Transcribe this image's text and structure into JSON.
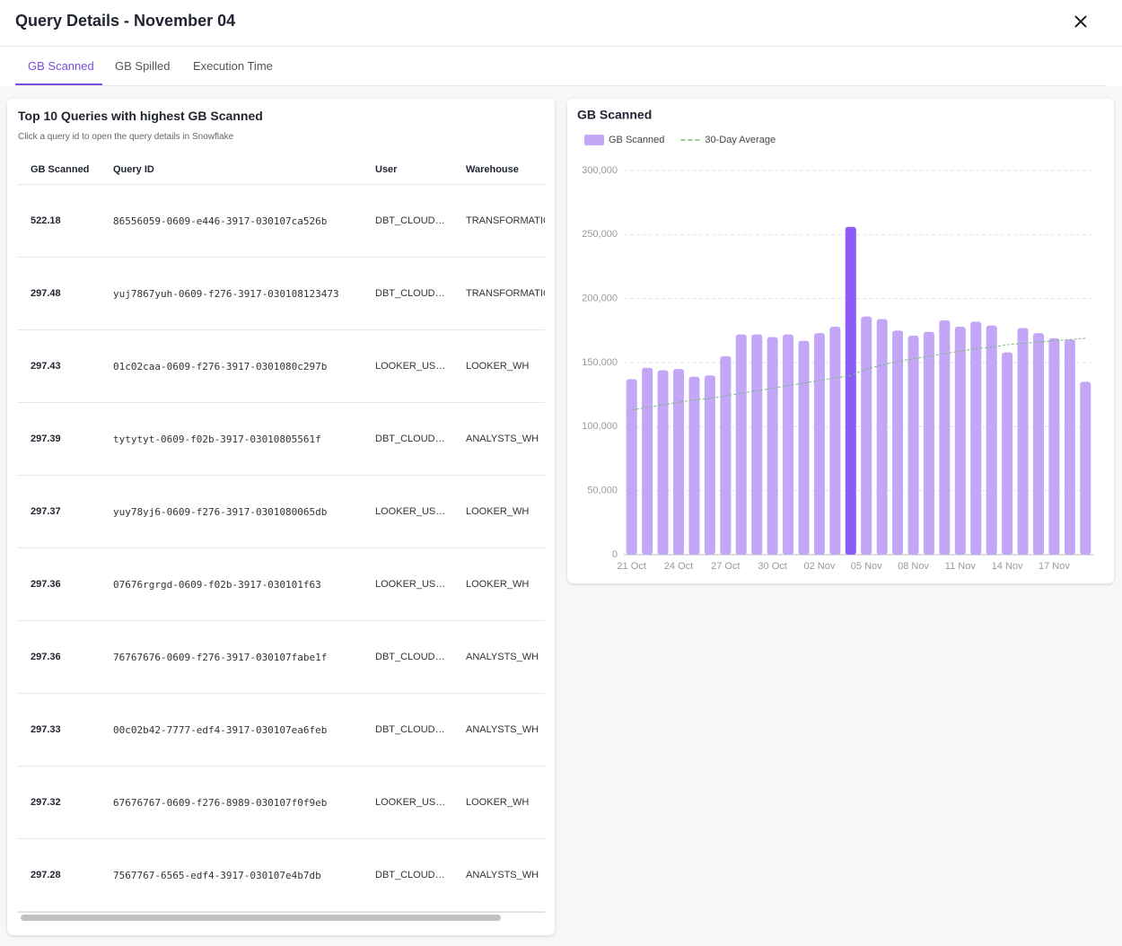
{
  "header": {
    "title": "Query Details - November 04"
  },
  "tabs": [
    "GB Scanned",
    "GB Spilled",
    "Execution Time"
  ],
  "table_card": {
    "title": "Top 10 Queries with highest GB Scanned",
    "subtitle": "Click a query id to open the query details in Snowflake",
    "columns": [
      "GB Scanned",
      "Query ID",
      "User",
      "Warehouse"
    ],
    "rows": [
      [
        "522.18",
        "86556059-0609-e446-3917-030107ca526b",
        "DBT_CLOUD…",
        "TRANSFORMATION_WH"
      ],
      [
        "297.48",
        "yuj7867yuh-0609-f276-3917-030108123473",
        "DBT_CLOUD…",
        "TRANSFORMATION_WH"
      ],
      [
        "297.43",
        "01c02caa-0609-f276-3917-0301080c297b",
        "LOOKER_US…",
        "LOOKER_WH"
      ],
      [
        "297.39",
        "tytytyt-0609-f02b-3917-03010805561f",
        "DBT_CLOUD…",
        "ANALYSTS_WH"
      ],
      [
        "297.37",
        "yuy78yj6-0609-f276-3917-0301080065db",
        "LOOKER_US…",
        "LOOKER_WH"
      ],
      [
        "297.36",
        "07676rgrgd-0609-f02b-3917-030101f63",
        "LOOKER_US…",
        "LOOKER_WH"
      ],
      [
        "297.36",
        "76767676-0609-f276-3917-030107fabe1f",
        "DBT_CLOUD…",
        "ANALYSTS_WH"
      ],
      [
        "297.33",
        "00c02b42-7777-edf4-3917-030107ea6feb",
        "DBT_CLOUD…",
        "ANALYSTS_WH"
      ],
      [
        "297.32",
        "67676767-0609-f276-8989-030107f0f9eb",
        "LOOKER_US…",
        "LOOKER_WH"
      ],
      [
        "297.28",
        "7567767-6565-edf4-3917-030107e4b7db",
        "DBT_CLOUD…",
        "ANALYSTS_WH"
      ]
    ]
  },
  "chart_data": {
    "type": "bar",
    "title": "GB Scanned",
    "categories": [
      "21 Oct",
      null,
      null,
      "24 Oct",
      null,
      null,
      "27 Oct",
      null,
      null,
      "30 Oct",
      null,
      null,
      "02 Nov",
      null,
      null,
      "05 Nov",
      null,
      null,
      "08 Nov",
      null,
      null,
      "11 Nov",
      null,
      null,
      "14 Nov",
      null,
      null,
      "17 Nov",
      null,
      null
    ],
    "series": [
      {
        "name": "GB Scanned",
        "color": "#c4a6f7",
        "values": [
          137000,
          146000,
          144000,
          145000,
          139000,
          140000,
          155000,
          172000,
          172000,
          170000,
          172000,
          167000,
          173000,
          178000,
          256000,
          186000,
          184000,
          175000,
          171000,
          174000,
          183000,
          178000,
          182000,
          179000,
          158000,
          177000,
          173000,
          169000,
          168000,
          135000
        ],
        "bar_colors": [
          "#c4a6f7",
          "#c4a6f7",
          "#c4a6f7",
          "#c4a6f7",
          "#c4a6f7",
          "#c4a6f7",
          "#c4a6f7",
          "#c4a6f7",
          "#c4a6f7",
          "#c4a6f7",
          "#c4a6f7",
          "#c4a6f7",
          "#c4a6f7",
          "#c4a6f7",
          "#8b5cf6",
          "#c4a6f7",
          "#c4a6f7",
          "#c4a6f7",
          "#c4a6f7",
          "#c4a6f7",
          "#c4a6f7",
          "#c4a6f7",
          "#c4a6f7",
          "#c4a6f7",
          "#c4a6f7",
          "#c4a6f7",
          "#c4a6f7",
          "#c4a6f7",
          "#c4a6f7",
          "#c4a6f7"
        ]
      },
      {
        "name": "30-Day Average",
        "color": "#7cb87c",
        "type": "line",
        "values": [
          113000,
          115000,
          117000,
          119000,
          121000,
          122000,
          124000,
          126000,
          128000,
          130000,
          132000,
          134000,
          136000,
          138000,
          140000,
          145000,
          148000,
          151000,
          153000,
          155000,
          157000,
          159000,
          161000,
          162000,
          164000,
          165000,
          166000,
          167000,
          168000,
          169000
        ]
      }
    ],
    "ylim": [
      0,
      300000
    ],
    "yticks": [
      0,
      {
        "value": 50000,
        "label": "50,000"
      },
      {
        "value": 100000,
        "label": "100,000"
      },
      {
        "value": 150000,
        "label": "150,000"
      },
      {
        "value": 200000,
        "label": "200,000"
      },
      {
        "value": 250000,
        "label": "250,000"
      },
      {
        "value": 300000,
        "label": "300,000"
      }
    ],
    "grid": true
  }
}
